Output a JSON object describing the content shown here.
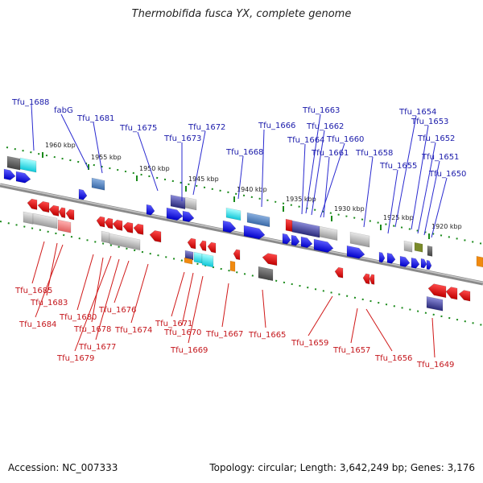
{
  "title": "Thermobifida fusca YX, complete genome",
  "footer": {
    "accession": "Accession: NC_007333",
    "summary": "Topology: circular; Length: 3,642,249 bp; Genes: 3,176"
  },
  "colors": {
    "forward_label": "#1a1aaa",
    "reverse_label": "#c4161c",
    "forward_gene": "#1010e0",
    "reverse_gene": "#e01010",
    "tick": "#1a8a1a",
    "backbone": "#8a8a8a"
  },
  "kbp_ticks": [
    {
      "label": "1960 kbp"
    },
    {
      "label": "1955 kbp"
    },
    {
      "label": "1950 kbp"
    },
    {
      "label": "1945 kbp"
    },
    {
      "label": "1940 kbp"
    },
    {
      "label": "1935 kbp"
    },
    {
      "label": "1930 kbp"
    },
    {
      "label": "1925 kbp"
    },
    {
      "label": "1920 kbp"
    }
  ],
  "forward_labels": [
    "Tfu_1688",
    "fabG",
    "Tfu_1681",
    "Tfu_1675",
    "Tfu_1672",
    "Tfu_1673",
    "Tfu_1666",
    "Tfu_1668",
    "Tfu_1663",
    "Tfu_1662",
    "Tfu_1664",
    "Tfu_1660",
    "Tfu_1661",
    "Tfu_1658",
    "Tfu_1654",
    "Tfu_1653",
    "Tfu_1655",
    "Tfu_1652",
    "Tfu_1651",
    "Tfu_1650"
  ],
  "reverse_labels": [
    "Tfu_1685",
    "Tfu_1683",
    "Tfu_1684",
    "Tfu_1680",
    "Tfu_1676",
    "Tfu_1678",
    "Tfu_1674",
    "Tfu_1677",
    "Tfu_1679",
    "Tfu_1671",
    "Tfu_1670",
    "Tfu_1669",
    "Tfu_1667",
    "Tfu_1665",
    "Tfu_1659",
    "Tfu_1657",
    "Tfu_1656",
    "Tfu_1649"
  ]
}
